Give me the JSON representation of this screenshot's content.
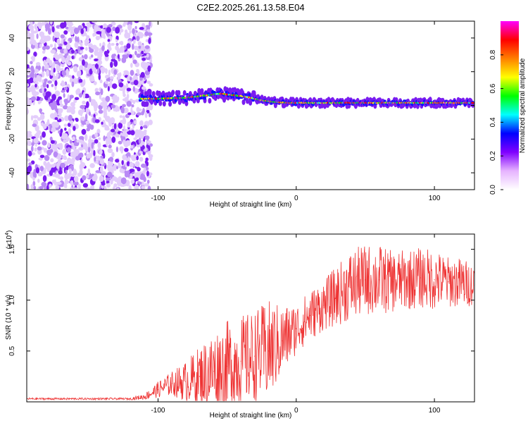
{
  "chart_data": [
    {
      "type": "heatmap",
      "title": "C2E2.2025.261.13.58.E04",
      "xlabel": "Height of straight line (km)",
      "ylabel": "Frequency (Hz)",
      "xlim": [
        -195,
        129
      ],
      "ylim": [
        -50,
        50
      ],
      "xticks": [
        -100,
        0,
        100
      ],
      "xtick_labels": [
        "-100",
        "0",
        "100"
      ],
      "yticks": [
        -40,
        -20,
        0,
        20,
        40
      ],
      "ytick_labels": [
        "-40",
        "-20",
        "0",
        "20",
        "40"
      ],
      "noise_region": [
        -195,
        -105
      ],
      "ridge": {
        "x": [
          -113,
          -100,
          -80,
          -65,
          -55,
          -45,
          -35,
          -25,
          -15,
          -5,
          0,
          10,
          20,
          40,
          60,
          80,
          100,
          128
        ],
        "y": [
          4,
          4,
          4.5,
          6,
          7,
          6,
          5,
          3,
          2,
          1.5,
          1.5,
          1.5,
          1.5,
          1.5,
          1.5,
          1.5,
          1.5,
          1.5
        ]
      },
      "colorbar": {
        "label": "Normalized spectral amplitude",
        "range": [
          0,
          1
        ],
        "ticks": [
          0.0,
          0.2,
          0.4,
          0.6,
          0.8
        ],
        "tick_labels": [
          "0.0",
          "0.2",
          "0.4",
          "0.6",
          "0.8"
        ],
        "colors": [
          "#ffffff",
          "#e6b3ff",
          "#8000ff",
          "#0000ff",
          "#00ffff",
          "#00ff00",
          "#ffff00",
          "#ff8000",
          "#ff0000",
          "#ff00ff"
        ]
      }
    },
    {
      "type": "line",
      "title": "",
      "xlabel": "Height of straight line (km)",
      "ylabel": "SNR (10 * v/v)",
      "y_multiplier": "(x10",
      "y_multiplier_exp": "4",
      "y_multiplier_close": ")",
      "xlim": [
        -195,
        129
      ],
      "ylim": [
        0,
        1.65
      ],
      "xticks": [
        -100,
        0,
        100
      ],
      "xtick_labels": [
        "-100",
        "0",
        "100"
      ],
      "yticks": [
        0.5,
        1.0,
        1.5
      ],
      "ytick_labels": [
        "0.5",
        "1.0",
        "1.5"
      ],
      "color": "#ee3333",
      "series": [
        {
          "name": "SNR",
          "x": [
            -195,
            -180,
            -160,
            -140,
            -120,
            -110,
            -100,
            -90,
            -80,
            -70,
            -60,
            -50,
            -40,
            -30,
            -20,
            -10,
            0,
            10,
            20,
            30,
            40,
            50,
            60,
            70,
            80,
            90,
            100,
            110,
            120,
            129
          ],
          "values": [
            0.03,
            0.03,
            0.03,
            0.03,
            0.03,
            0.05,
            0.12,
            0.18,
            0.2,
            0.25,
            0.3,
            0.35,
            0.4,
            0.45,
            0.5,
            0.6,
            0.72,
            0.85,
            0.95,
            1.05,
            1.15,
            1.2,
            1.2,
            1.18,
            1.2,
            1.22,
            1.2,
            1.18,
            1.17,
            1.15
          ],
          "spread": [
            0.01,
            0.01,
            0.01,
            0.01,
            0.01,
            0.03,
            0.08,
            0.12,
            0.2,
            0.3,
            0.4,
            0.45,
            0.45,
            0.45,
            0.5,
            0.35,
            0.25,
            0.25,
            0.25,
            0.3,
            0.35,
            0.35,
            0.35,
            0.3,
            0.3,
            0.3,
            0.3,
            0.25,
            0.25,
            0.2
          ]
        }
      ]
    }
  ]
}
